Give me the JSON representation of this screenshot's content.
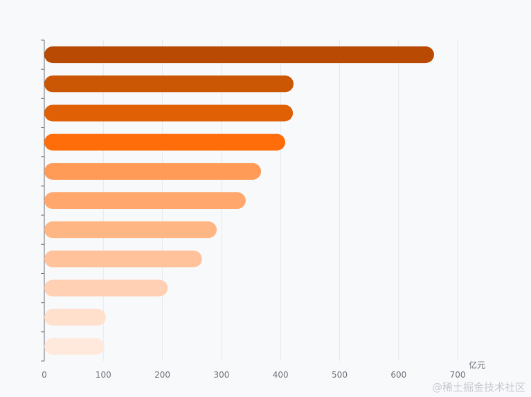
{
  "chart_data": {
    "type": "bar",
    "orientation": "horizontal",
    "categories": [
      "",
      "",
      "",
      "",
      "",
      "",
      "",
      "",
      "",
      "",
      ""
    ],
    "values": [
      660,
      422,
      421,
      408,
      367,
      341,
      292,
      267,
      209,
      104,
      102
    ],
    "colors": [
      "#b84a04",
      "#cb5603",
      "#e06005",
      "#ff6d0a",
      "#ff9a57",
      "#ffa76c",
      "#ffb685",
      "#ffc29b",
      "#ffd0b3",
      "#ffe0cd",
      "#ffe9dc"
    ],
    "xlim": [
      0,
      700
    ],
    "xticks": [
      "0",
      "100",
      "200",
      "300",
      "400",
      "500",
      "600",
      "700"
    ],
    "x_unit": "亿元",
    "grid": true
  },
  "watermark": "@稀土掘金技术社区"
}
